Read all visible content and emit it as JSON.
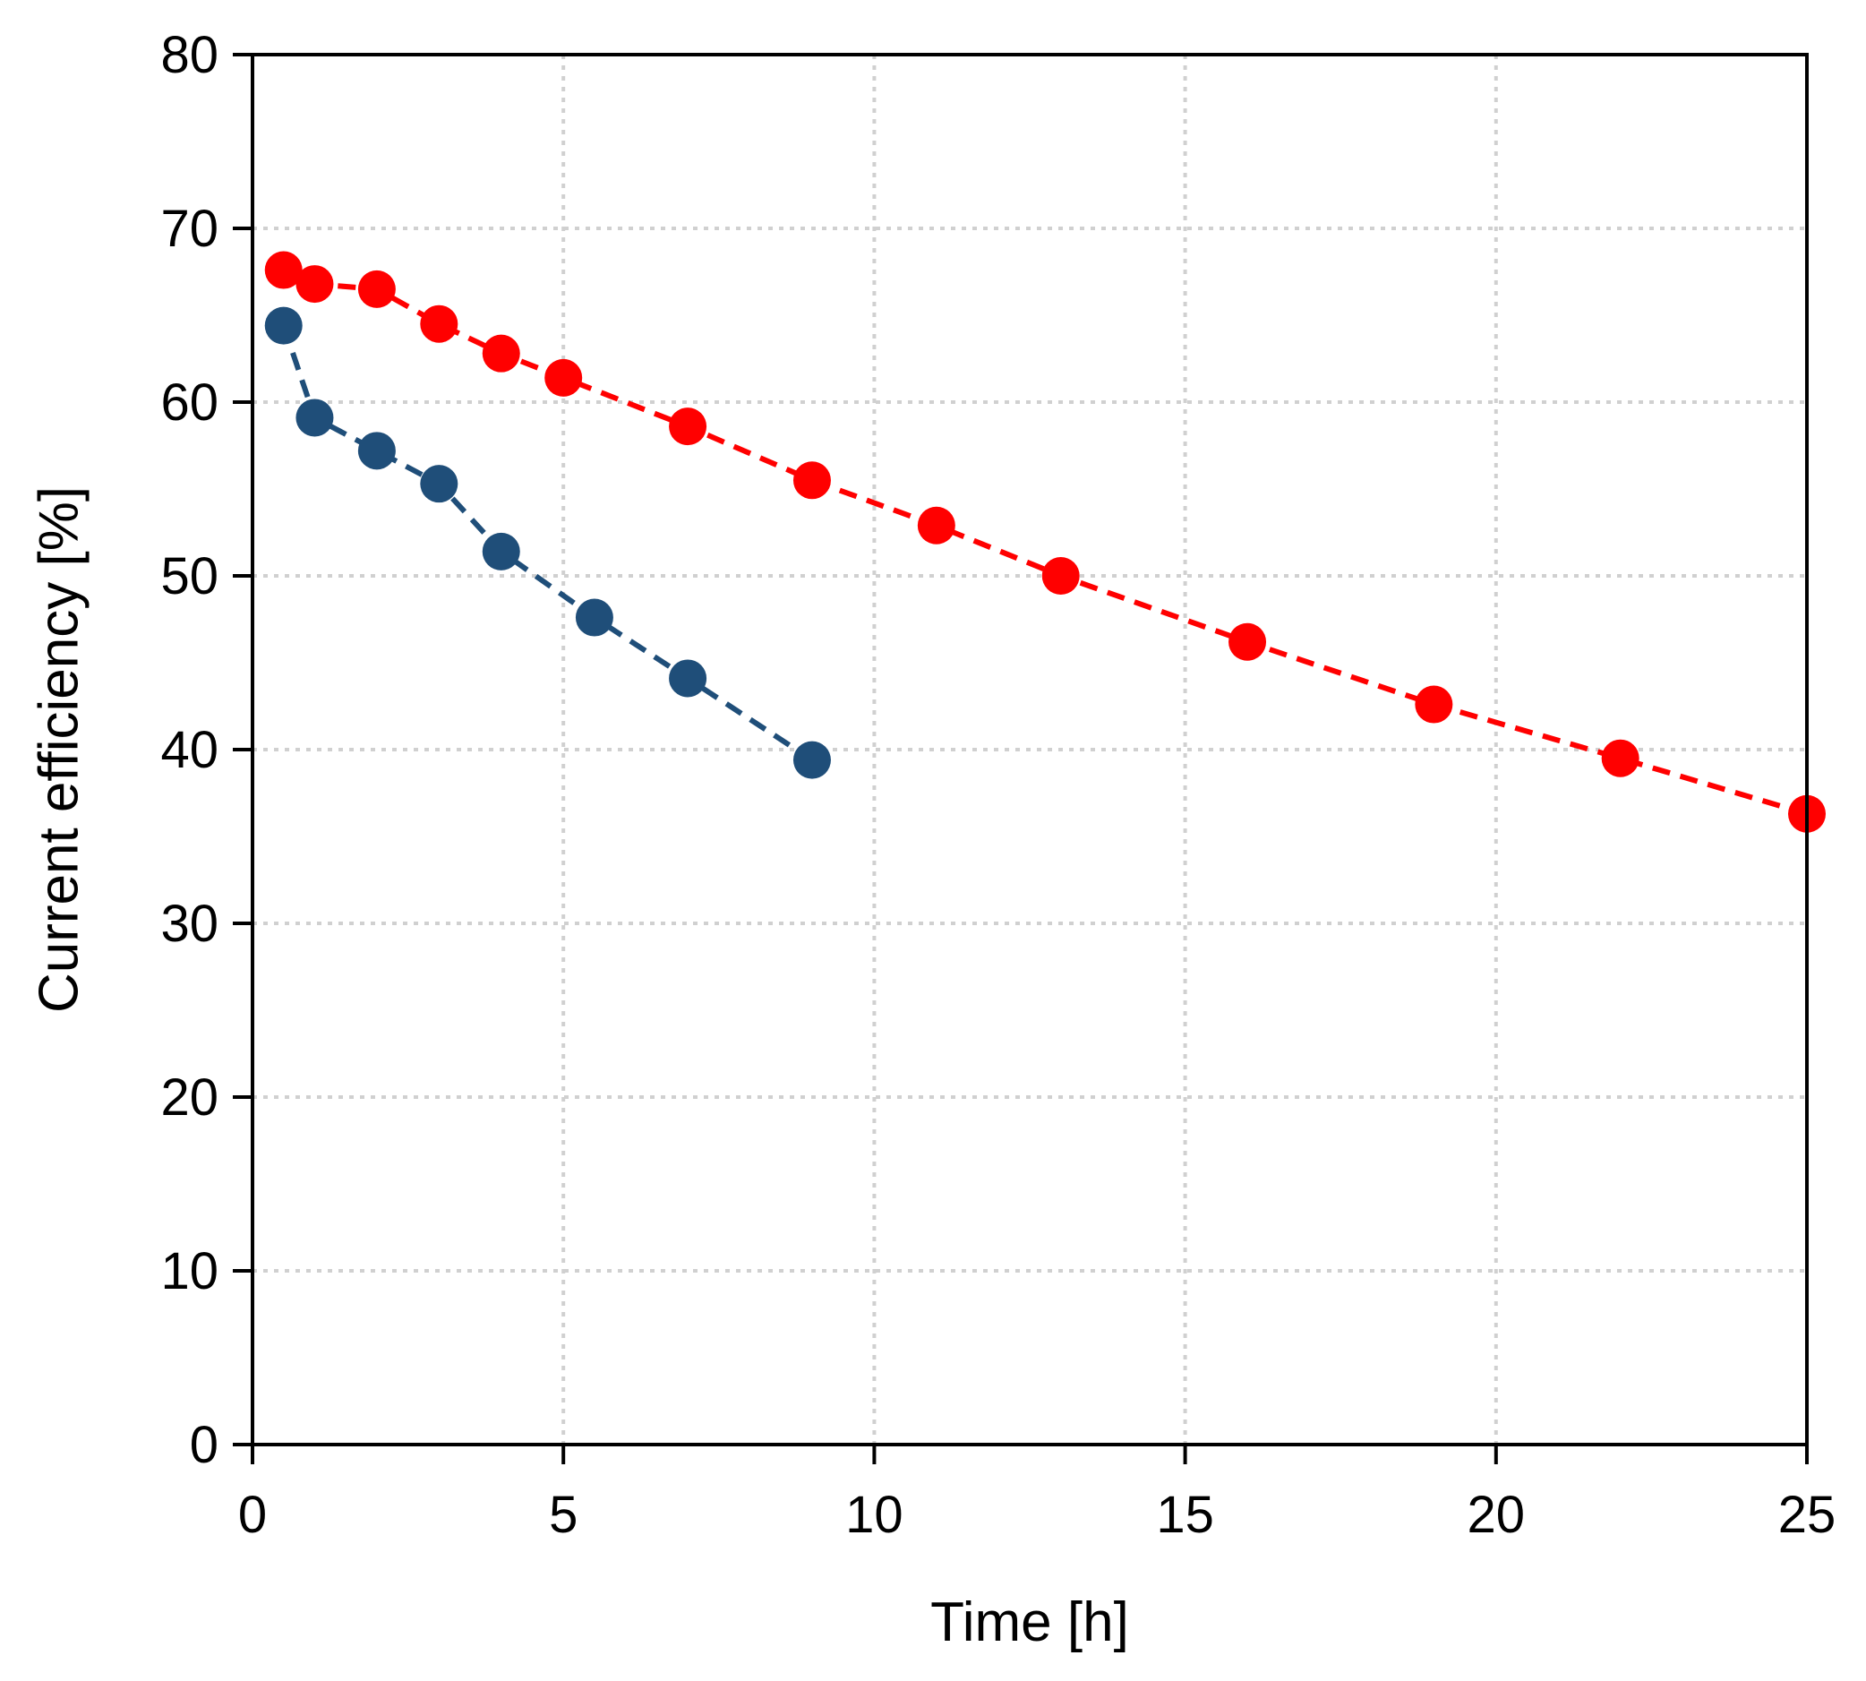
{
  "chart_data": {
    "type": "scatter",
    "xlabel": "Time [h]",
    "ylabel": "Current efficiency [%]",
    "xlim": [
      0,
      25
    ],
    "ylim": [
      0,
      80
    ],
    "xticks": [
      0,
      5,
      10,
      15,
      20,
      25
    ],
    "yticks": [
      0,
      10,
      20,
      30,
      40,
      50,
      60,
      70,
      80
    ],
    "grid": true,
    "legend": "none",
    "series": [
      {
        "color": "#ff0000",
        "line": "dashed",
        "marker": "circle",
        "x": [
          0.5,
          1,
          2,
          3,
          4,
          5,
          7,
          9,
          11,
          13,
          16,
          19,
          22,
          25
        ],
        "y": [
          67.6,
          66.8,
          66.5,
          64.5,
          62.8,
          61.4,
          58.6,
          55.5,
          52.9,
          50.0,
          46.2,
          42.6,
          39.5,
          36.3
        ]
      },
      {
        "color": "#1f4e79",
        "line": "dashed",
        "marker": "circle",
        "x": [
          0.5,
          1,
          2,
          3,
          4,
          5.5,
          7,
          9
        ],
        "y": [
          64.4,
          59.1,
          57.2,
          55.3,
          51.4,
          47.6,
          44.1,
          39.4
        ]
      }
    ]
  }
}
